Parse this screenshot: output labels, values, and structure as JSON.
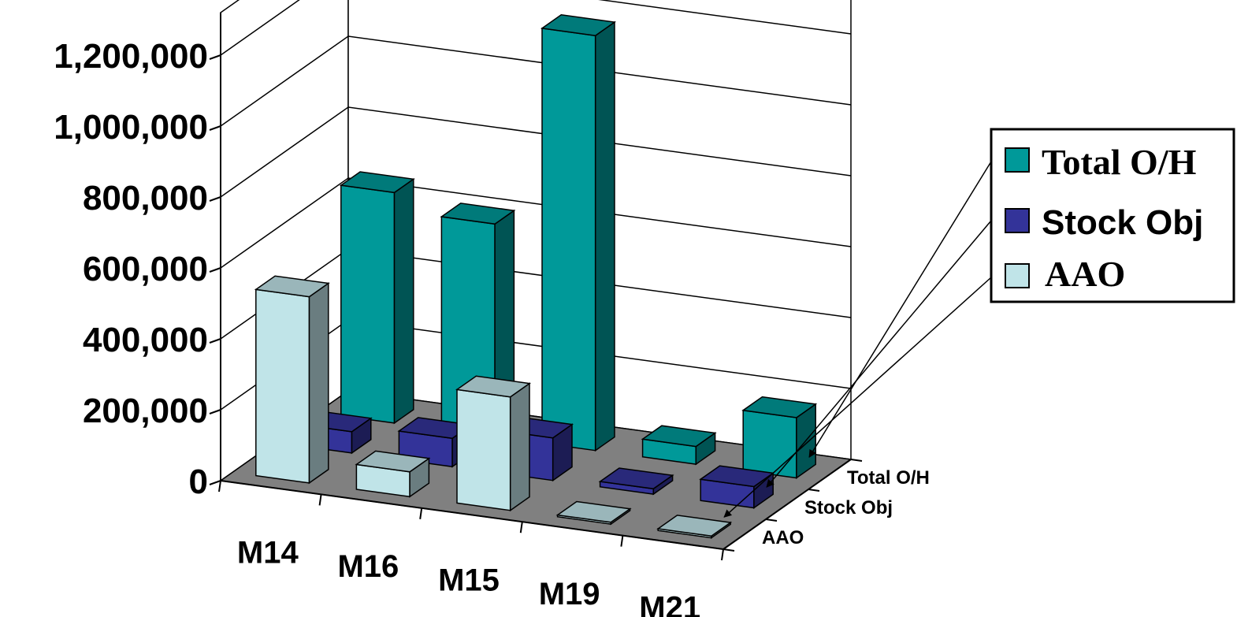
{
  "chart_data": {
    "type": "bar",
    "subtype": "3d-column",
    "title": "",
    "categories": [
      "M14",
      "M16",
      "M15",
      "M19",
      "M21"
    ],
    "series": [
      {
        "name": "Total O/H",
        "values": [
          650000,
          600000,
          1170000,
          50000,
          170000
        ],
        "color": "#009999"
      },
      {
        "name": "Stock Obj",
        "values": [
          60000,
          80000,
          120000,
          15000,
          60000
        ],
        "color": "#333399"
      },
      {
        "name": "AAO",
        "values": [
          525000,
          70000,
          320000,
          5000,
          5000
        ],
        "color": "#c0e4e8"
      }
    ],
    "yticks": [
      "0",
      "200,000",
      "400,000",
      "600,000",
      "800,000",
      "1,000,000",
      "1,200,000"
    ],
    "ylim": [
      0,
      1200000
    ],
    "grid": true,
    "floor_color": "#808080",
    "legend": {
      "position": "right",
      "entries": [
        "Total O/H",
        "Stock Obj",
        "AAO"
      ]
    }
  }
}
